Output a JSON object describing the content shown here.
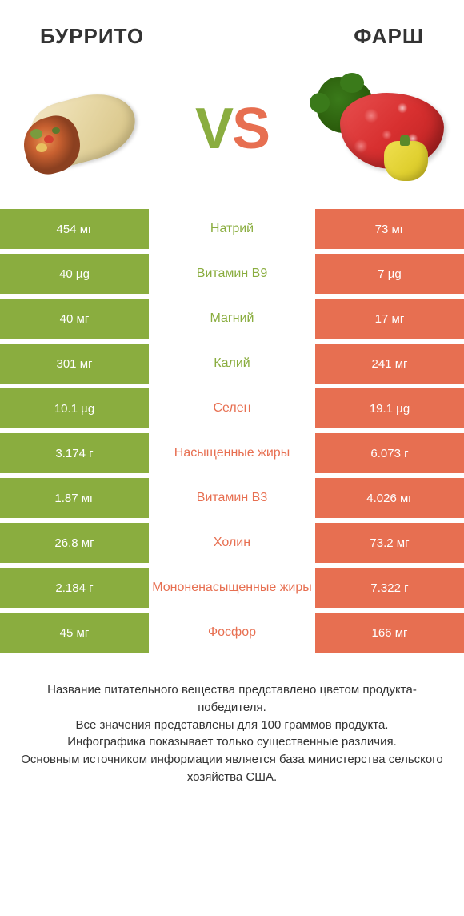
{
  "left_title": "БУРРИТО",
  "right_title": "ФАРШ",
  "vs": {
    "v": "V",
    "s": "S"
  },
  "colors": {
    "left": "#8aad3f",
    "right": "#e76f51"
  },
  "rows": [
    {
      "left": "454 мг",
      "label": "Натрий",
      "right": "73 мг",
      "winner": "left"
    },
    {
      "left": "40 µg",
      "label": "Витамин B9",
      "right": "7 µg",
      "winner": "left"
    },
    {
      "left": "40 мг",
      "label": "Магний",
      "right": "17 мг",
      "winner": "left"
    },
    {
      "left": "301 мг",
      "label": "Калий",
      "right": "241 мг",
      "winner": "left"
    },
    {
      "left": "10.1 µg",
      "label": "Селен",
      "right": "19.1 µg",
      "winner": "right"
    },
    {
      "left": "3.174 г",
      "label": "Насыщенные жиры",
      "right": "6.073 г",
      "winner": "right"
    },
    {
      "left": "1.87 мг",
      "label": "Витамин B3",
      "right": "4.026 мг",
      "winner": "right"
    },
    {
      "left": "26.8 мг",
      "label": "Холин",
      "right": "73.2 мг",
      "winner": "right"
    },
    {
      "left": "2.184 г",
      "label": "Мононенасыщенные жиры",
      "right": "7.322 г",
      "winner": "right"
    },
    {
      "left": "45 мг",
      "label": "Фосфор",
      "right": "166 мг",
      "winner": "right"
    }
  ],
  "footer": [
    "Название питательного вещества представлено цветом продукта-победителя.",
    "Все значения представлены для 100 граммов продукта.",
    "Инфографика показывает только существенные различия.",
    "Основным источником информации является база министерства сельского хозяйства США."
  ]
}
